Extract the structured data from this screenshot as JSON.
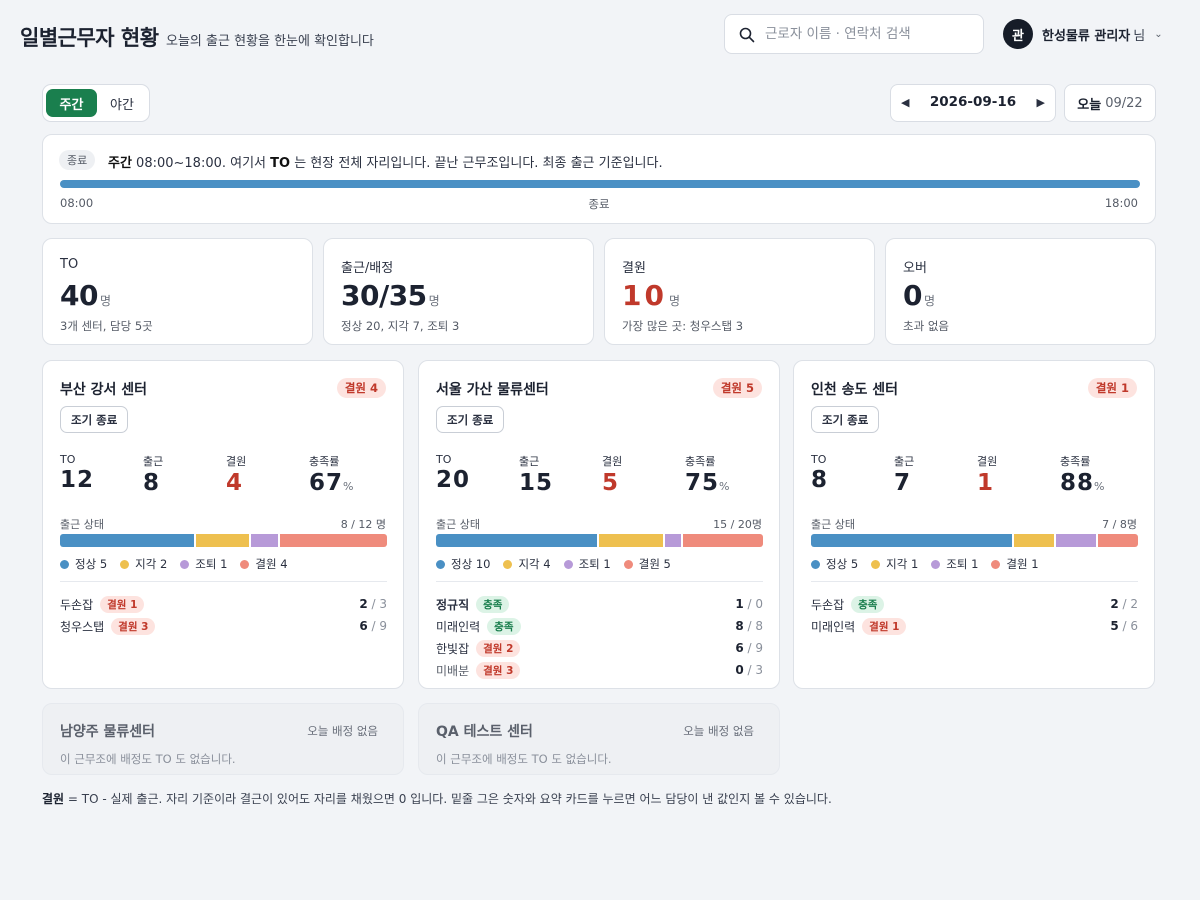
{
  "header": {
    "title": "일별근무자 현황",
    "subtitle": "오늘의 출근 현황을 한눈에 확인합니다",
    "search_placeholder": "근로자 이름 · 연락처 검색",
    "avatar_initial": "관",
    "user_name": "한성물류 관리자",
    "user_suffix": "님"
  },
  "shift_tabs": {
    "day": "주간",
    "night": "야간",
    "active": "주간"
  },
  "date_nav": {
    "date": "2026-09-16",
    "today_label": "오늘",
    "today_date": "09/22"
  },
  "timeline": {
    "tag": "종료",
    "shift": "주간",
    "text_1": " 08:00~18:00. 여기서 ",
    "to": "TO",
    "text_2": " 는 현장 전체 자리입니다. 끝난 근무조입니다. 최종 출근 기준입니다.",
    "start": "08:00",
    "status": "종료",
    "end": "18:00"
  },
  "summary": [
    {
      "label": "TO",
      "value": "40",
      "unit": "명",
      "sub": "3개 센터, 담당 5곳"
    },
    {
      "label": "출근/배정",
      "value": "30/35",
      "unit": "명",
      "sub": "정상 20, 지각 7, 조퇴 3"
    },
    {
      "label": "결원",
      "value": "10",
      "unit": "명",
      "sub": "가장 많은 곳: 청우스탭 3"
    },
    {
      "label": "오버",
      "value": "0",
      "unit": "명",
      "sub": "초과 없음"
    }
  ],
  "colors": {
    "normal": "#4a90c4",
    "late": "#eec04f",
    "early": "#b79ad8",
    "absent": "#ef8b7c",
    "accent": "#1a7f4e",
    "danger": "#c0392b"
  },
  "centers": [
    {
      "name": "부산 강서 센터",
      "badge": "결원 4",
      "early_btn": "조기 종료",
      "metrics": {
        "to_label": "TO",
        "to": "12",
        "out_label": "출근",
        "out": "8",
        "short_label": "결원",
        "short": "4",
        "rate_label": "충족률",
        "rate": "67",
        "pct": "%"
      },
      "att_label": "출근 상태",
      "att_count": "8 / 12 명",
      "breakdown": {
        "normal": 5,
        "late": 2,
        "early": 1,
        "absent": 4
      },
      "legend": [
        "정상 5",
        "지각 2",
        "조퇴 1",
        "결원 4"
      ],
      "partners": [
        {
          "name": "두손잡",
          "badge": "결원 1",
          "badge_type": "short",
          "current": "2",
          "total": " / 3"
        },
        {
          "name": "청우스탭",
          "badge": "결원 3",
          "badge_type": "short",
          "current": "6",
          "total": " / 9"
        }
      ]
    },
    {
      "name": "서울 가산 물류센터",
      "badge": "결원 5",
      "early_btn": "조기 종료",
      "metrics": {
        "to_label": "TO",
        "to": "20",
        "out_label": "출근",
        "out": "15",
        "short_label": "결원",
        "short": "5",
        "rate_label": "충족률",
        "rate": "75",
        "pct": "%"
      },
      "att_label": "출근 상태",
      "att_count": "15 / 20명",
      "breakdown": {
        "normal": 10,
        "late": 4,
        "early": 1,
        "absent": 5
      },
      "legend": [
        "정상 10",
        "지각 4",
        "조퇴 1",
        "결원 5"
      ],
      "partners": [
        {
          "name": "정규직",
          "badge": "충족",
          "badge_type": "full",
          "current": "1",
          "total": " / 0",
          "strong": true
        },
        {
          "name": "미래인력",
          "badge": "충족",
          "badge_type": "full",
          "current": "8",
          "total": " / 8"
        },
        {
          "name": "한빛잡",
          "badge": "결원 2",
          "badge_type": "short",
          "current": "6",
          "total": " / 9"
        },
        {
          "name": "미배분",
          "badge": "결원 3",
          "badge_type": "short",
          "current": "0",
          "total": " / 3",
          "muted": true
        }
      ]
    },
    {
      "name": "인천 송도 센터",
      "badge": "결원 1",
      "early_btn": "조기 종료",
      "metrics": {
        "to_label": "TO",
        "to": "8",
        "out_label": "출근",
        "out": "7",
        "short_label": "결원",
        "short": "1",
        "rate_label": "충족률",
        "rate": "88",
        "pct": "%"
      },
      "att_label": "출근 상태",
      "att_count": "7 / 8명",
      "breakdown": {
        "normal": 5,
        "late": 1,
        "early": 1,
        "absent": 1
      },
      "legend": [
        "정상 5",
        "지각 1",
        "조퇴 1",
        "결원 1"
      ],
      "partners": [
        {
          "name": "두손잡",
          "badge": "충족",
          "badge_type": "full",
          "current": "2",
          "total": " / 2"
        },
        {
          "name": "미래인력",
          "badge": "결원 1",
          "badge_type": "short",
          "current": "5",
          "total": " / 6"
        }
      ]
    }
  ],
  "empty_centers": [
    {
      "name": "남양주 물류센터",
      "tag": "오늘 배정 없음",
      "desc": "이 근무조에 배정도 TO 도 없습니다."
    },
    {
      "name": "QA 테스트 센터",
      "tag": "오늘 배정 없음",
      "desc": "이 근무조에 배정도 TO 도 없습니다."
    }
  ],
  "footnote": {
    "term": "결원",
    "text": " = TO - 실제 출근. 자리 기준이라 결근이 있어도 자리를 채웠으면 0 입니다. 밑줄 그은 숫자와 요약 카드를 누르면 어느 담당이 낸 값인지 볼 수 있습니다."
  }
}
